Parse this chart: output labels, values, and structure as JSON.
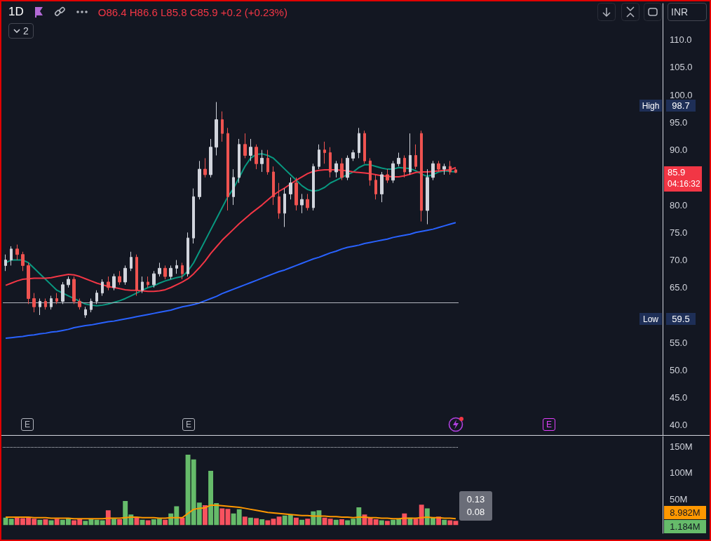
{
  "chart_data": [
    {
      "type": "candlestick",
      "title": "1D",
      "subtitle": "O86.4 H86.6 L85.8 C85.9 +0.2 (+0.23%)",
      "categories": [
        null,
        null,
        null,
        null,
        null,
        null,
        null,
        null,
        null,
        null,
        null,
        null,
        null,
        null,
        null,
        null,
        null,
        null,
        null,
        null,
        null,
        null,
        null,
        null,
        null,
        null,
        null,
        null,
        null,
        null,
        null,
        null,
        null,
        null,
        null,
        null,
        null,
        null,
        null,
        null,
        null,
        null,
        null,
        null,
        null,
        null,
        null,
        null,
        null,
        null,
        null,
        null,
        null,
        null,
        null,
        null,
        null,
        null,
        null,
        null,
        null,
        null,
        null,
        null,
        null,
        null,
        null,
        null,
        null,
        null,
        null,
        null,
        null,
        null,
        null,
        null,
        null,
        null,
        null,
        null
      ],
      "ohlc": [
        [
          69,
          71,
          68,
          70
        ],
        [
          70,
          72.5,
          69,
          72
        ],
        [
          72,
          72.8,
          70,
          71
        ],
        [
          71,
          71.5,
          68,
          69
        ],
        [
          69,
          69.5,
          62,
          63
        ],
        [
          63,
          64,
          60.5,
          61.5
        ],
        [
          61.5,
          63,
          60,
          62.5
        ],
        [
          62.5,
          63,
          61,
          61.5
        ],
        [
          61.5,
          63.5,
          61,
          63
        ],
        [
          63,
          64,
          62,
          62.5
        ],
        [
          62.5,
          66,
          62,
          65.5
        ],
        [
          65.5,
          67,
          65,
          66.5
        ],
        [
          66.5,
          67,
          62,
          62.5
        ],
        [
          62.5,
          63,
          61,
          61.5
        ],
        [
          60,
          61.5,
          59.5,
          61
        ],
        [
          61,
          63,
          60.5,
          62.5
        ],
        [
          62.5,
          64.5,
          62,
          64
        ],
        [
          64,
          66.5,
          63.5,
          66
        ],
        [
          66,
          67,
          64.5,
          65
        ],
        [
          65,
          67.5,
          64.5,
          67
        ],
        [
          67,
          68,
          65.5,
          66
        ],
        [
          66,
          69,
          65.5,
          68.5
        ],
        [
          68.5,
          71.5,
          68,
          70.5
        ],
        [
          70.5,
          71,
          63.5,
          64.5
        ],
        [
          64.5,
          67,
          64,
          66
        ],
        [
          66,
          67,
          65,
          65.5
        ],
        [
          65.5,
          68,
          65,
          67.5
        ],
        [
          67.5,
          69.5,
          67,
          68.5
        ],
        [
          68.5,
          69,
          66.5,
          67
        ],
        [
          67,
          69,
          66.5,
          68.5
        ],
        [
          68.5,
          70,
          67.5,
          69
        ],
        [
          69,
          69.5,
          66.5,
          67.5
        ],
        [
          67.5,
          75,
          67,
          74
        ],
        [
          74,
          83,
          73,
          81.5
        ],
        [
          81.5,
          88,
          81,
          86.5
        ],
        [
          86.5,
          88.5,
          85,
          85.5
        ],
        [
          85.5,
          92,
          85,
          90.5
        ],
        [
          90.5,
          98.7,
          89,
          95.5
        ],
        [
          95.5,
          97,
          91.5,
          93
        ],
        [
          93,
          94,
          79,
          81.5
        ],
        [
          81.5,
          86.5,
          80,
          85
        ],
        [
          85,
          92,
          84,
          91
        ],
        [
          91,
          93,
          88.5,
          89
        ],
        [
          89,
          92,
          88,
          90.5
        ],
        [
          90.5,
          91,
          86.5,
          87.5
        ],
        [
          87.5,
          90,
          86,
          88.5
        ],
        [
          88.5,
          90,
          85.5,
          86
        ],
        [
          86,
          87,
          80,
          81.5
        ],
        [
          81.5,
          84,
          77.5,
          78.5
        ],
        [
          78.5,
          83,
          76,
          82
        ],
        [
          82,
          85,
          81,
          84
        ],
        [
          84,
          85,
          79,
          80
        ],
        [
          80,
          82,
          78.5,
          81
        ],
        [
          81,
          82,
          79,
          79.5
        ],
        [
          79.5,
          87.5,
          79,
          87
        ],
        [
          87,
          91,
          86.5,
          90
        ],
        [
          90,
          91.5,
          87.5,
          89.5
        ],
        [
          89.5,
          90.5,
          85,
          86
        ],
        [
          86,
          88,
          85,
          87.5
        ],
        [
          87.5,
          88.5,
          84.5,
          85
        ],
        [
          85,
          89,
          84.5,
          88.5
        ],
        [
          88.5,
          90,
          88,
          89.5
        ],
        [
          89.5,
          94,
          88.5,
          93
        ],
        [
          93,
          93.5,
          87.5,
          88
        ],
        [
          88,
          88.5,
          83.5,
          84.5
        ],
        [
          84.5,
          85.5,
          81,
          82
        ],
        [
          82,
          86,
          80.5,
          85.5
        ],
        [
          85.5,
          86.5,
          84,
          84.5
        ],
        [
          84.5,
          88,
          84,
          87.5
        ],
        [
          87.5,
          89.5,
          87,
          88.5
        ],
        [
          88.5,
          89,
          85,
          86
        ],
        [
          86,
          93,
          85.5,
          89
        ],
        [
          89,
          91,
          86.5,
          87
        ],
        [
          93,
          93.5,
          77,
          79
        ],
        [
          79,
          86.5,
          76.5,
          85
        ],
        [
          85,
          88,
          84.5,
          87.5
        ],
        [
          87.5,
          88,
          86,
          86.5
        ],
        [
          86.5,
          87.5,
          85.5,
          87
        ],
        [
          87,
          88,
          85.5,
          86
        ],
        [
          86.4,
          86.6,
          85.8,
          85.9
        ]
      ],
      "colors": [
        "#d1d4dc",
        "#d1d4dc",
        "#ef5350",
        "#ef5350",
        "#ef5350",
        "#ef5350",
        "#d1d4dc",
        "#ef5350",
        "#d1d4dc",
        "#ef5350",
        "#d1d4dc",
        "#d1d4dc",
        "#ef5350",
        "#ef5350",
        "#d1d4dc",
        "#d1d4dc",
        "#d1d4dc",
        "#d1d4dc",
        "#ef5350",
        "#d1d4dc",
        "#ef5350",
        "#d1d4dc",
        "#d1d4dc",
        "#ef5350",
        "#d1d4dc",
        "#ef5350",
        "#d1d4dc",
        "#d1d4dc",
        "#ef5350",
        "#d1d4dc",
        "#d1d4dc",
        "#ef5350",
        "#d1d4dc",
        "#d1d4dc",
        "#d1d4dc",
        "#ef5350",
        "#d1d4dc",
        "#d1d4dc",
        "#ef5350",
        "#ef5350",
        "#d1d4dc",
        "#d1d4dc",
        "#ef5350",
        "#d1d4dc",
        "#ef5350",
        "#d1d4dc",
        "#ef5350",
        "#ef5350",
        "#ef5350",
        "#d1d4dc",
        "#d1d4dc",
        "#ef5350",
        "#d1d4dc",
        "#ef5350",
        "#d1d4dc",
        "#d1d4dc",
        "#ef5350",
        "#ef5350",
        "#d1d4dc",
        "#ef5350",
        "#d1d4dc",
        "#d1d4dc",
        "#d1d4dc",
        "#ef5350",
        "#ef5350",
        "#ef5350",
        "#d1d4dc",
        "#ef5350",
        "#d1d4dc",
        "#d1d4dc",
        "#ef5350",
        "#d1d4dc",
        "#ef5350",
        "#ef5350",
        "#d1d4dc",
        "#d1d4dc",
        "#ef5350",
        "#d1d4dc",
        "#ef5350",
        "#ef5350"
      ],
      "series": [
        {
          "type": "line",
          "color": "#089981",
          "values": [
            69.5,
            70,
            70,
            70,
            69.5,
            68.5,
            67.5,
            66.5,
            65.5,
            64.5,
            64,
            63.5,
            63,
            62.5,
            62,
            61.8,
            61.7,
            61.8,
            62,
            62.3,
            62.6,
            63,
            63.5,
            64,
            64.5,
            65,
            65.3,
            65.8,
            66.2,
            66.5,
            66.8,
            67,
            68,
            69.5,
            71.5,
            73.5,
            75.5,
            77.5,
            79.5,
            81.5,
            83,
            85,
            87,
            88.5,
            89.2,
            89.3,
            89,
            88.5,
            87.5,
            86.5,
            85.5,
            84.5,
            83.5,
            82.8,
            82.5,
            82.7,
            83.2,
            84,
            84.5,
            85,
            85.5,
            86,
            86.8,
            87.3,
            87.3,
            87,
            86.7,
            86.5,
            86.5,
            86.8,
            86.7,
            86.6,
            86.2,
            85.6,
            85.2,
            85.5,
            86,
            86.2,
            86.1,
            86
          ]
        },
        {
          "type": "line",
          "color": "#f23645",
          "values": [
            65.4,
            65.8,
            66.2,
            66.5,
            66.6,
            66.7,
            66.7,
            66.7,
            66.8,
            67,
            67.2,
            67.4,
            67.3,
            67,
            66.6,
            66.2,
            65.8,
            65.5,
            65.2,
            65,
            64.8,
            64.6,
            64.5,
            64.5,
            64.4,
            64.3,
            64.3,
            64.4,
            64.6,
            65,
            65.5,
            66,
            66.6,
            67.5,
            68.6,
            69.8,
            71.2,
            72.4,
            73.6,
            74.6,
            75.6,
            76.6,
            77.5,
            78.4,
            79.2,
            80,
            80.9,
            81.8,
            82.5,
            83.1,
            83.8,
            84.5,
            85.1,
            85.7,
            86.1,
            86.3,
            86.4,
            86.4,
            86.4,
            86.3,
            86.2,
            86,
            85.9,
            85.8,
            85.7,
            85.5,
            85.3,
            85.2,
            85.1,
            85.1,
            85.3,
            85.6,
            85.9,
            86,
            86,
            86.1,
            86.2,
            86.3,
            86.4,
            86.8
          ]
        },
        {
          "type": "line",
          "color": "#2962ff",
          "values": [
            55.8,
            55.9,
            56,
            56.1,
            56.3,
            56.4,
            56.6,
            56.7,
            56.9,
            57,
            57.2,
            57.4,
            57.7,
            57.9,
            58.1,
            58.2,
            58.4,
            58.6,
            58.8,
            58.9,
            59.1,
            59.3,
            59.5,
            59.7,
            59.9,
            60.1,
            60.3,
            60.5,
            60.7,
            60.9,
            61.2,
            61.5,
            61.7,
            61.9,
            62.2,
            62.6,
            63,
            63.4,
            63.9,
            64.3,
            64.7,
            65.1,
            65.5,
            65.9,
            66.3,
            66.7,
            67.1,
            67.5,
            67.9,
            68.2,
            68.6,
            69,
            69.4,
            69.8,
            70.2,
            70.5,
            70.9,
            71.3,
            71.6,
            72,
            72.3,
            72.5,
            72.7,
            73,
            73.2,
            73.4,
            73.6,
            73.8,
            74.1,
            74.3,
            74.5,
            74.7,
            75,
            75.2,
            75.4,
            75.6,
            75.9,
            76.2,
            76.5,
            76.8
          ]
        }
      ],
      "ylim": [
        38.2,
        116.6
      ],
      "yticks": [
        {
          "value": 40,
          "label": "40.0"
        },
        {
          "value": 45,
          "label": "45.0"
        },
        {
          "value": 50,
          "label": "50.0"
        },
        {
          "value": 55,
          "label": "55.0"
        },
        {
          "value": 65,
          "label": "65.0"
        },
        {
          "value": 70,
          "label": "70.0"
        },
        {
          "value": 75,
          "label": "75.0"
        },
        {
          "value": 80,
          "label": "80.0"
        },
        {
          "value": 90,
          "label": "90.0"
        },
        {
          "value": 95,
          "label": "95.0"
        },
        {
          "value": 100,
          "label": "100.0"
        },
        {
          "value": 105,
          "label": "105.0"
        },
        {
          "value": 110,
          "label": "110.0"
        }
      ],
      "tick_labels": "y",
      "ref_lines": [
        {
          "axis": "y",
          "value": 62.3,
          "color": "#b2b5be"
        }
      ],
      "annotations": [
        "INR",
        "2",
        "E",
        "E",
        "E",
        "High",
        "98.7",
        "Low",
        "59.5",
        "85.9",
        "04:16:32"
      ]
    },
    {
      "type": "bar",
      "categories": [
        null,
        null,
        null,
        null,
        null,
        null,
        null,
        null,
        null,
        null,
        null,
        null,
        null,
        null,
        null,
        null,
        null,
        null,
        null,
        null,
        null,
        null,
        null,
        null,
        null,
        null,
        null,
        null,
        null,
        null,
        null,
        null,
        null,
        null,
        null,
        null,
        null,
        null,
        null,
        null,
        null,
        null,
        null,
        null,
        null,
        null,
        null,
        null,
        null,
        null,
        null,
        null,
        null,
        null,
        null,
        null,
        null,
        null,
        null,
        null,
        null,
        null,
        null,
        null,
        null,
        null,
        null,
        null,
        null,
        null,
        null,
        null,
        null,
        null,
        null,
        null,
        null,
        null,
        null,
        null
      ],
      "series": [
        {
          "type": "bar",
          "values": [
            14,
            12,
            16,
            13,
            15,
            12,
            10,
            11,
            9,
            12,
            10,
            13,
            9,
            11,
            8,
            12,
            10,
            9,
            28,
            12,
            11,
            46,
            20,
            14,
            10,
            9,
            11,
            12,
            10,
            22,
            36,
            14,
            135,
            126,
            43,
            38,
            104,
            42,
            32,
            31,
            22,
            30,
            16,
            14,
            13,
            11,
            9,
            12,
            16,
            18,
            20,
            14,
            10,
            12,
            26,
            28,
            14,
            12,
            10,
            11,
            9,
            12,
            34,
            20,
            15,
            11,
            9,
            8,
            10,
            12,
            22,
            14,
            12,
            39,
            32,
            15,
            16,
            10,
            9,
            8
          ],
          "colors": [
            "#66bb6a",
            "#66bb6a",
            "#f7525f",
            "#f7525f",
            "#f7525f",
            "#f7525f",
            "#66bb6a",
            "#f7525f",
            "#66bb6a",
            "#f7525f",
            "#66bb6a",
            "#66bb6a",
            "#f7525f",
            "#f7525f",
            "#66bb6a",
            "#66bb6a",
            "#66bb6a",
            "#66bb6a",
            "#f7525f",
            "#66bb6a",
            "#f7525f",
            "#66bb6a",
            "#66bb6a",
            "#f7525f",
            "#66bb6a",
            "#f7525f",
            "#66bb6a",
            "#66bb6a",
            "#f7525f",
            "#66bb6a",
            "#66bb6a",
            "#f7525f",
            "#66bb6a",
            "#66bb6a",
            "#66bb6a",
            "#f7525f",
            "#66bb6a",
            "#66bb6a",
            "#f7525f",
            "#f7525f",
            "#66bb6a",
            "#66bb6a",
            "#f7525f",
            "#66bb6a",
            "#f7525f",
            "#66bb6a",
            "#f7525f",
            "#f7525f",
            "#f7525f",
            "#66bb6a",
            "#66bb6a",
            "#f7525f",
            "#66bb6a",
            "#f7525f",
            "#66bb6a",
            "#66bb6a",
            "#f7525f",
            "#f7525f",
            "#66bb6a",
            "#f7525f",
            "#66bb6a",
            "#66bb6a",
            "#66bb6a",
            "#f7525f",
            "#f7525f",
            "#f7525f",
            "#66bb6a",
            "#f7525f",
            "#66bb6a",
            "#66bb6a",
            "#f7525f",
            "#66bb6a",
            "#f7525f",
            "#f7525f",
            "#66bb6a",
            "#66bb6a",
            "#f7525f",
            "#66bb6a",
            "#f7525f",
            "#f7525f"
          ]
        },
        {
          "type": "line",
          "color": "#ff9800",
          "values": [
            15,
            15,
            15,
            15,
            15,
            14,
            14,
            14,
            13,
            13,
            13,
            13,
            12,
            12,
            12,
            12,
            12,
            12,
            13,
            13,
            13,
            14,
            15,
            15,
            14,
            14,
            14,
            13,
            13,
            14,
            14,
            14,
            22,
            30,
            32,
            33,
            38,
            38,
            37,
            36,
            35,
            34,
            32,
            30,
            28,
            26,
            24,
            23,
            22,
            21,
            20,
            19,
            18,
            18,
            17,
            17,
            17,
            16,
            16,
            15,
            15,
            14,
            15,
            15,
            14,
            14,
            13,
            13,
            12,
            12,
            13,
            13,
            13,
            14,
            15,
            14,
            14,
            13,
            13,
            12
          ]
        }
      ],
      "ylim": [
        -16,
        170
      ],
      "yticks": [
        {
          "value": 50,
          "label": "50M"
        },
        {
          "value": 100,
          "label": "100M"
        },
        {
          "value": 150,
          "label": "150M"
        }
      ],
      "tick_labels": "y",
      "ref_lines": [
        {
          "axis": "y",
          "value": 150,
          "color": "#d1d4dc",
          "line_style": "dotted"
        }
      ],
      "annotations": [
        "0.13",
        "0.08",
        "8.982M",
        "1.184M"
      ]
    }
  ]
}
